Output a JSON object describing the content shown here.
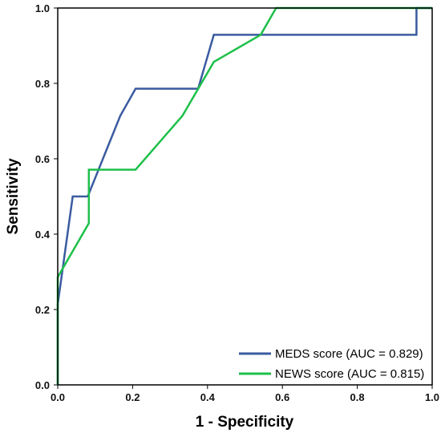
{
  "chart_data": {
    "type": "line",
    "xlabel": "1 - Specificity",
    "ylabel": "Sensitivity",
    "xlim": [
      0,
      1
    ],
    "ylim": [
      0,
      1
    ],
    "x_ticks": [
      "0.0",
      "0.2",
      "0.4",
      "0.6",
      "0.8",
      "1.0"
    ],
    "y_ticks": [
      "0.0",
      "0.2",
      "0.4",
      "0.6",
      "0.8",
      "1.0"
    ],
    "grid": false,
    "legend_position": "bottom-right",
    "series": [
      {
        "name": "MEDS score (AUC = 0.829)",
        "color": "#3a5ba0",
        "x": [
          0,
          0,
          0.04,
          0.08,
          0.167,
          0.208,
          0.375,
          0.417,
          0.542,
          0.958,
          0.958,
          1.0
        ],
        "y": [
          0,
          0.214,
          0.5,
          0.5,
          0.714,
          0.786,
          0.786,
          0.929,
          0.929,
          0.929,
          1.0,
          1.0
        ]
      },
      {
        "name": "NEWS score (AUC = 0.815)",
        "color": "#1ec04a",
        "x": [
          0,
          0,
          0.083,
          0.083,
          0.208,
          0.333,
          0.417,
          0.542,
          0.583,
          1.0
        ],
        "y": [
          0,
          0.286,
          0.429,
          0.571,
          0.571,
          0.714,
          0.857,
          0.929,
          1.0,
          1.0
        ]
      }
    ]
  }
}
